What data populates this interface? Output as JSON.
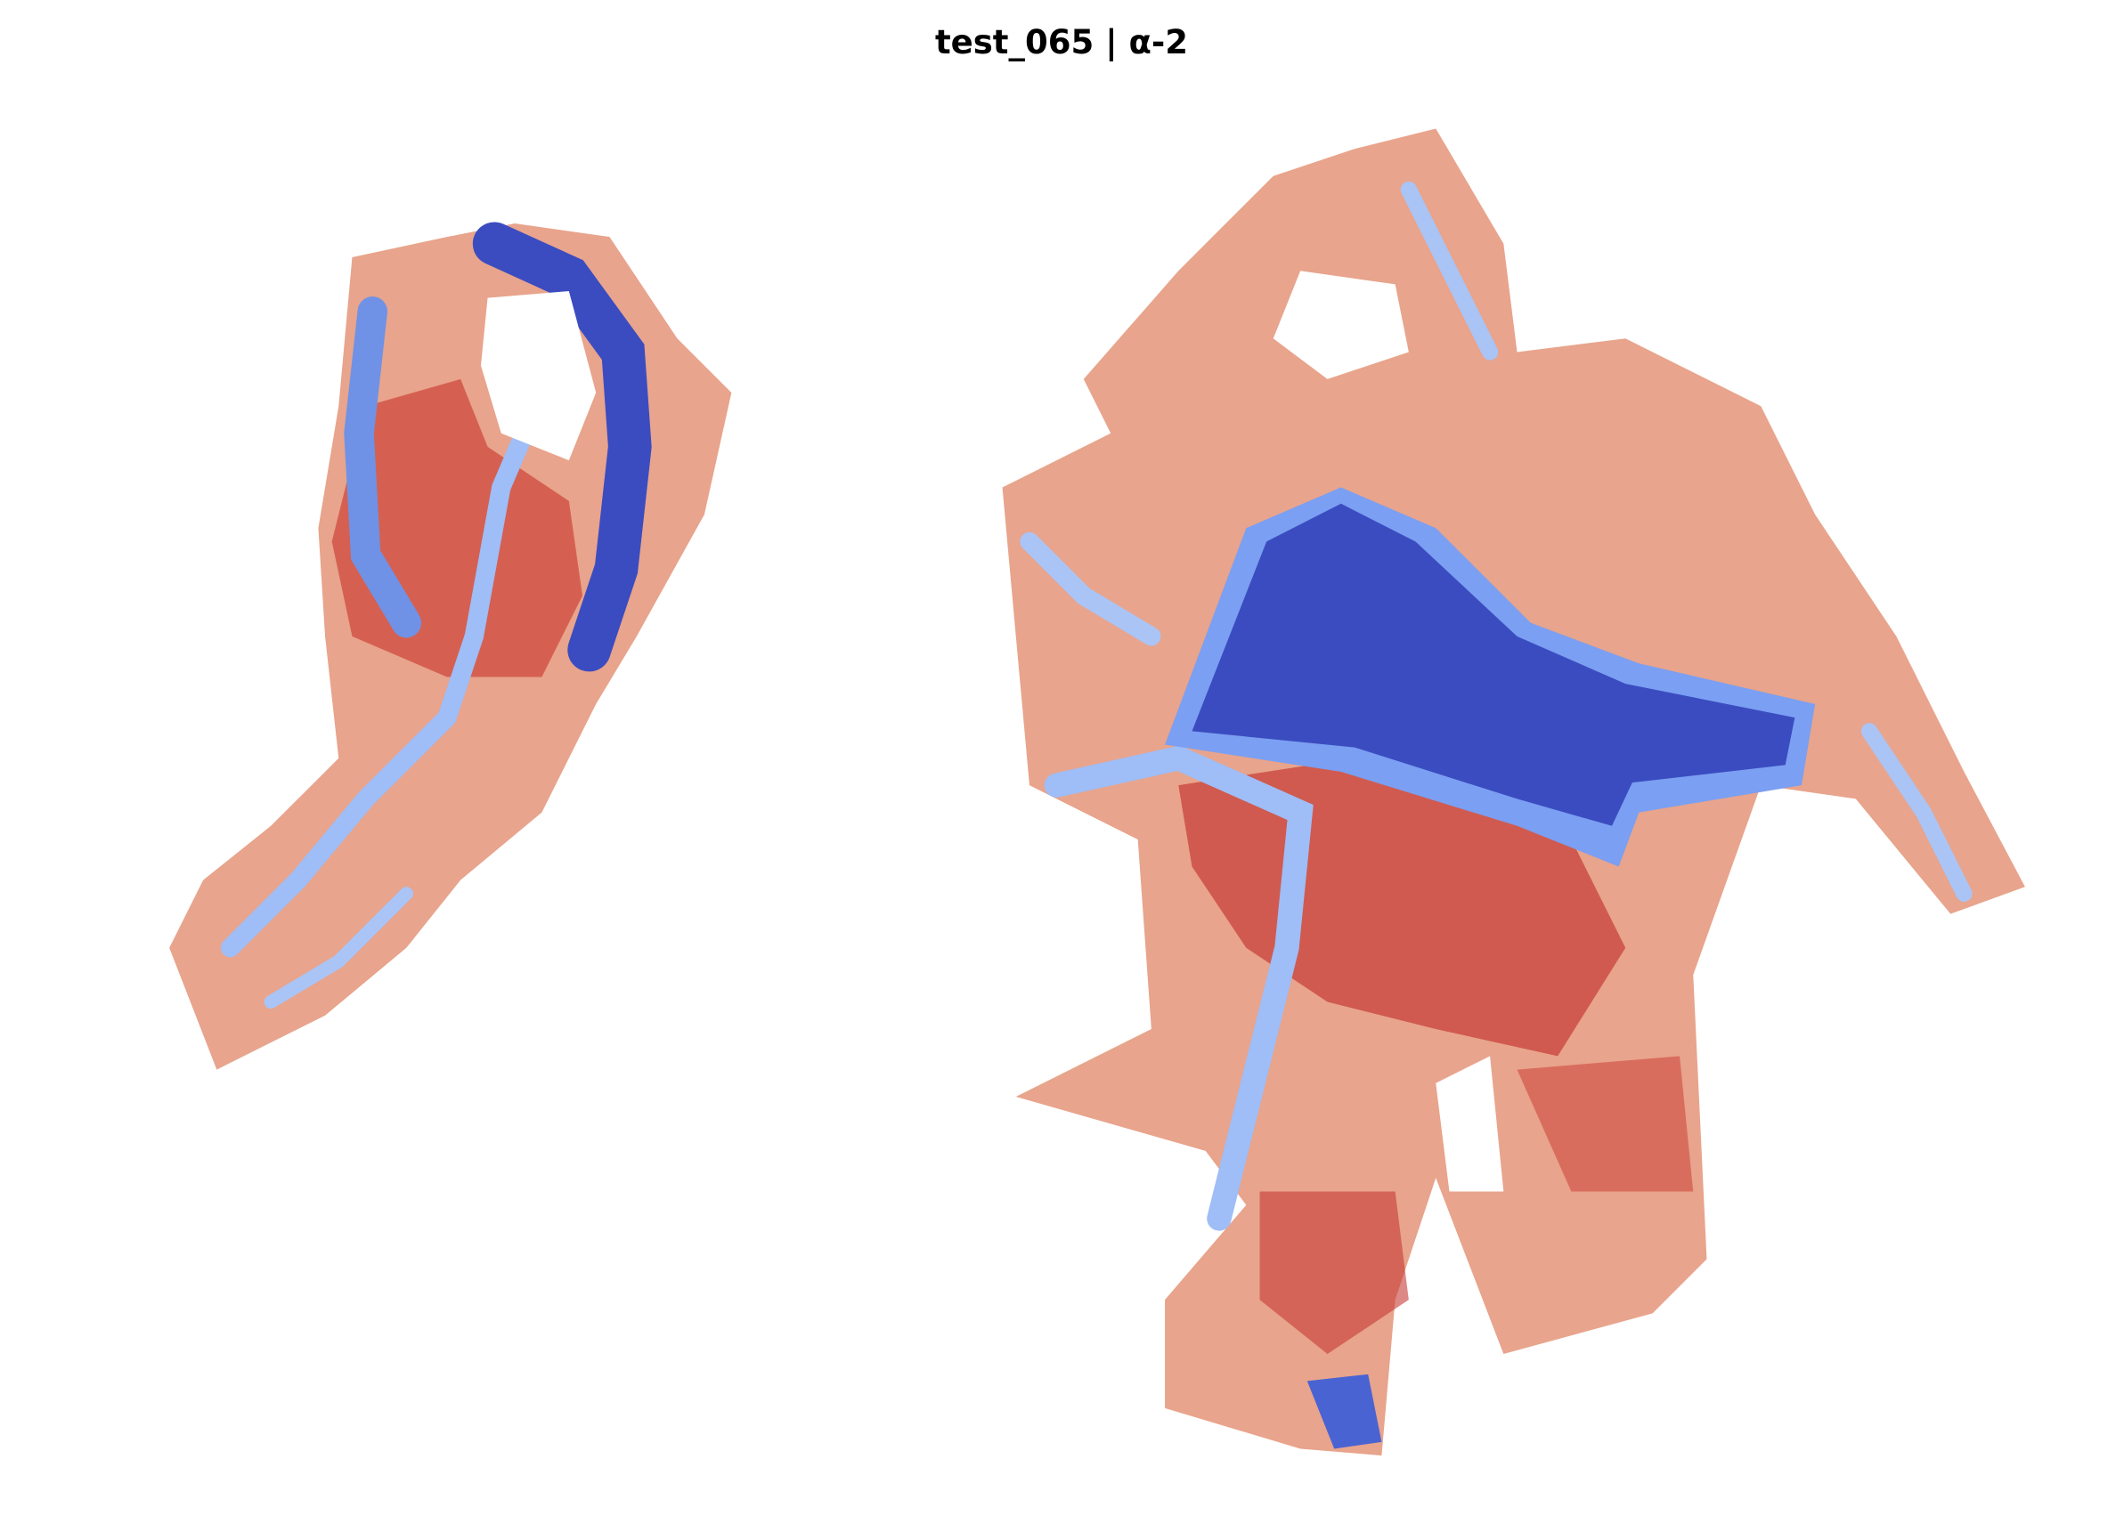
{
  "title": "test_065 | α-2"
}
